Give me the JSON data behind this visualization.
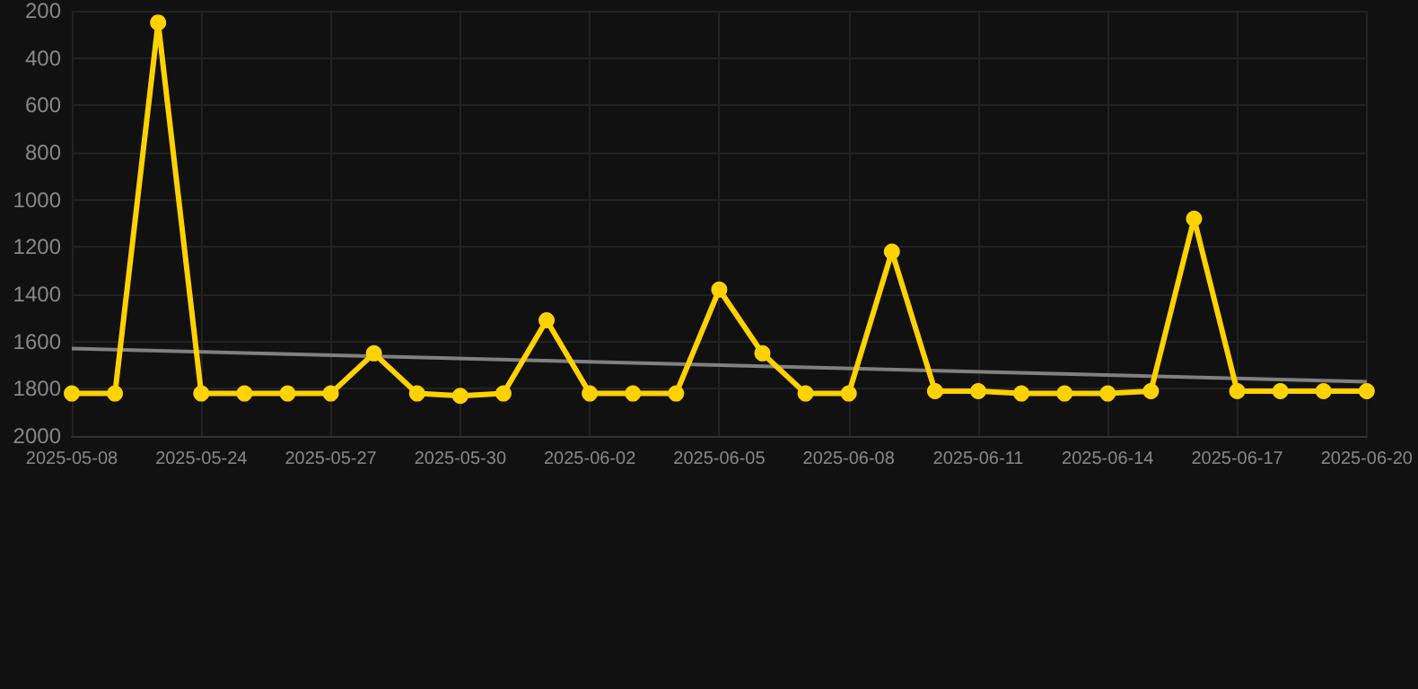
{
  "chart_data": {
    "type": "line",
    "categories": [
      "2025-05-08",
      null,
      null,
      "2025-05-24",
      null,
      null,
      "2025-05-27",
      null,
      null,
      "2025-05-30",
      null,
      null,
      "2025-06-02",
      null,
      null,
      "2025-06-05",
      null,
      null,
      "2025-06-08",
      null,
      null,
      "2025-06-11",
      null,
      null,
      "2025-06-14",
      null,
      null,
      "2025-06-17",
      null,
      null,
      "2025-06-20"
    ],
    "series": [
      {
        "color": "#ffd200",
        "values": [
          1820,
          1820,
          250,
          1820,
          1820,
          1820,
          1820,
          1650,
          1820,
          1830,
          1820,
          1510,
          1820,
          1820,
          1820,
          1380,
          1650,
          1820,
          1820,
          1220,
          1810,
          1810,
          1820,
          1820,
          1820,
          1810,
          1080,
          1810,
          1810,
          1810,
          1810
        ]
      },
      {
        "type": "line",
        "color": "#808080",
        "marker": "none",
        "values": [
          1630,
          null,
          null,
          null,
          null,
          null,
          null,
          null,
          null,
          null,
          null,
          null,
          null,
          null,
          null,
          null,
          null,
          null,
          null,
          null,
          null,
          null,
          null,
          null,
          null,
          null,
          null,
          null,
          null,
          null,
          1770
        ]
      }
    ],
    "ylim": [
      2000,
      200
    ],
    "yticks": [
      200,
      400,
      600,
      800,
      1000,
      1200,
      1400,
      1600,
      1800,
      2000
    ],
    "grid": true,
    "marker": "circle"
  }
}
